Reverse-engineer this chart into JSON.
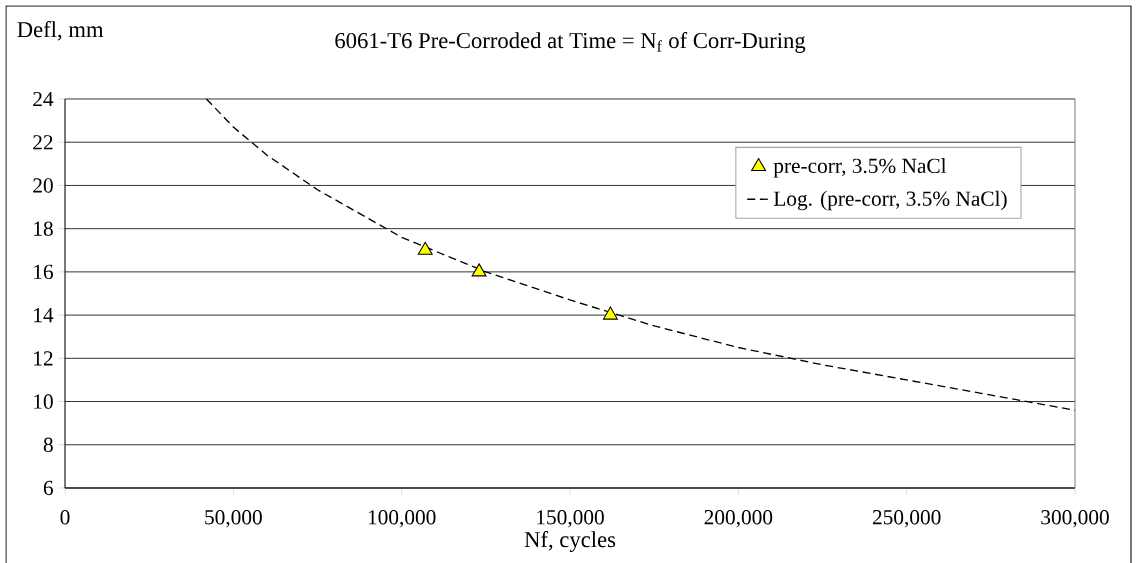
{
  "chart_data": {
    "type": "scatter",
    "title": "6061-T6 Pre-Corroded at Time = N$_{f}$ of Corr-During",
    "xlabel": "Nf, cycles",
    "ylabel": "Defl, mm",
    "series": [
      {
        "name": "pre-corr, 3.5% NaCl",
        "color": "#ffff00",
        "marker": "triangle",
        "x": [
          107000,
          123000,
          162000
        ],
        "values": [
          17,
          16,
          14
        ]
      },
      {
        "name": "Log. (pre-corr, 3.5% NaCl)",
        "type": "line",
        "color": "#000000",
        "marker": "none",
        "line_style": "dashed",
        "x": [
          42000,
          50000,
          60000,
          75000,
          100000,
          125000,
          150000,
          175000,
          200000,
          225000,
          250000,
          275000,
          300000
        ],
        "values": [
          24,
          22.7,
          21.4,
          19.8,
          17.6,
          16.0,
          14.7,
          13.5,
          12.5,
          11.7,
          11.0,
          10.3,
          9.6
        ]
      }
    ],
    "xlim": [
      0,
      300000
    ],
    "ylim": [
      6,
      24
    ],
    "xticks": [
      0,
      {
        "value": 50000,
        "label": "50,000"
      },
      {
        "value": 100000,
        "label": "100,000"
      },
      {
        "value": 150000,
        "label": "150,000"
      },
      {
        "value": 200000,
        "label": "200,000"
      },
      {
        "value": 250000,
        "label": "250,000"
      },
      {
        "value": 300000,
        "label": "300,000"
      }
    ],
    "yticks": [
      6,
      8,
      10,
      12,
      14,
      16,
      18,
      20,
      22,
      24
    ],
    "grid": "y",
    "legend": "top right"
  }
}
